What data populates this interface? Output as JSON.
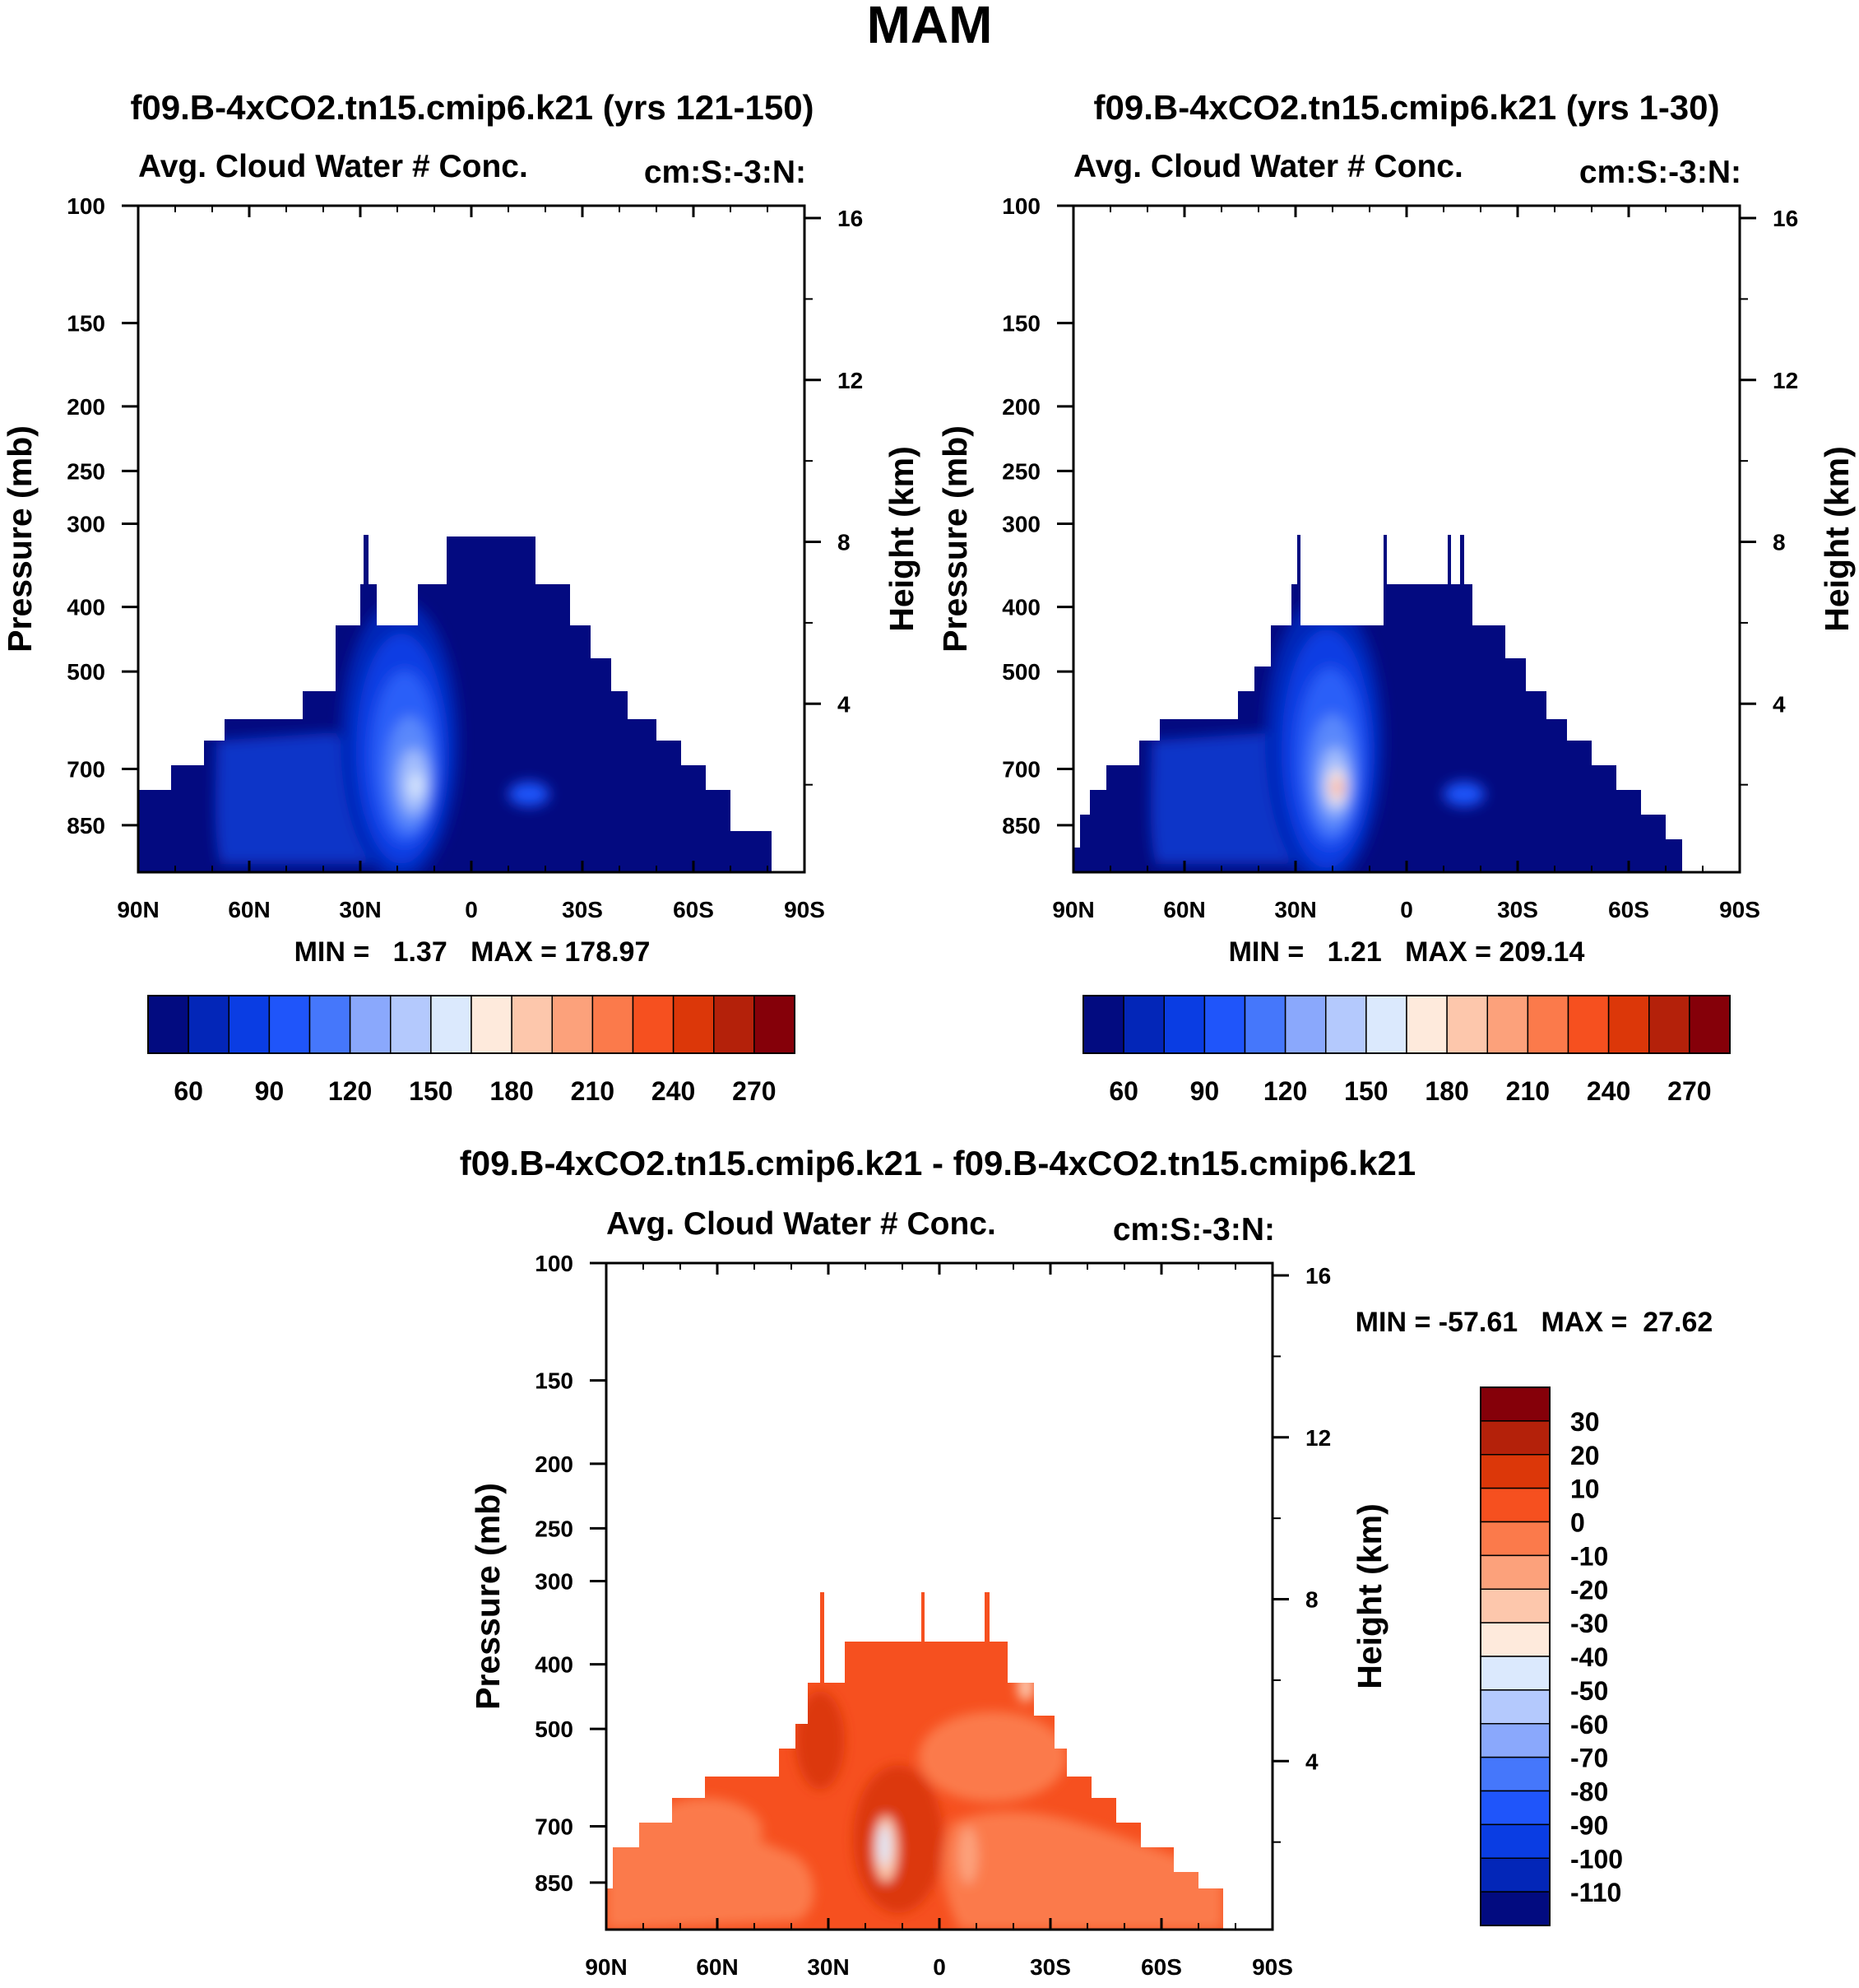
{
  "figure_title": "MAM",
  "panels": [
    {
      "id": "panel1",
      "case_title": "f09.B-4xCO2.tn15.cmip6.k21 (yrs 121-150)",
      "variable": "Avg. Cloud Water # Conc.",
      "units": "cm:S:-3:N:",
      "stats": "MIN =   1.37   MAX = 178.97",
      "y_label_left": "Pressure (mb)",
      "y_label_right": "Height (km)",
      "colorbar": {
        "colors": [
          "#020b80",
          "#0326b8",
          "#0a3de3",
          "#1f55fa",
          "#4577fb",
          "#8aa8fc",
          "#b4c9fd",
          "#dbe9fd",
          "#feeadc",
          "#fdc7ac",
          "#fca17b",
          "#fb7a4b",
          "#f6501f",
          "#dc3709",
          "#b4210a",
          "#850009"
        ],
        "labels": [
          "60",
          "90",
          "120",
          "150",
          "180",
          "210",
          "240",
          "270"
        ]
      }
    },
    {
      "id": "panel2",
      "case_title": "f09.B-4xCO2.tn15.cmip6.k21 (yrs 1-30)",
      "variable": "Avg. Cloud Water # Conc.",
      "units": "cm:S:-3:N:",
      "stats": "MIN =   1.21   MAX = 209.14",
      "y_label_left": "Pressure (mb)",
      "y_label_right": "Height (km)",
      "colorbar": {
        "colors": [
          "#020b80",
          "#0326b8",
          "#0a3de3",
          "#1f55fa",
          "#4577fb",
          "#8aa8fc",
          "#b4c9fd",
          "#dbe9fd",
          "#feeadc",
          "#fdc7ac",
          "#fca17b",
          "#fb7a4b",
          "#f6501f",
          "#dc3709",
          "#b4210a",
          "#850009"
        ],
        "labels": [
          "60",
          "90",
          "120",
          "150",
          "180",
          "210",
          "240",
          "270"
        ]
      }
    },
    {
      "id": "panel3",
      "case_title": "f09.B-4xCO2.tn15.cmip6.k21 - f09.B-4xCO2.tn15.cmip6.k21",
      "variable": "Avg. Cloud Water # Conc.",
      "units": "cm:S:-3:N:",
      "stats": "MIN = -57.61   MAX =  27.62",
      "y_label_left": "Pressure (mb)",
      "y_label_right": "Height (km)",
      "colorbar": {
        "colors": [
          "#020b80",
          "#0326b8",
          "#0a3de3",
          "#1f55fa",
          "#4577fb",
          "#8aa8fc",
          "#b4c9fd",
          "#dbe9fd",
          "#feeadc",
          "#fdc7ac",
          "#fca17b",
          "#fb7a4b",
          "#f6501f",
          "#dc3709",
          "#b4210a",
          "#850009"
        ],
        "labels": [
          "30",
          "20",
          "10",
          "0",
          "-10",
          "-20",
          "-30",
          "-40",
          "-50",
          "-60",
          "-70",
          "-80",
          "-90",
          "-100",
          "-110"
        ]
      }
    }
  ],
  "chart_data": [
    {
      "type": "heatmap",
      "title": "f09.B-4xCO2.tn15.cmip6.k21 (yrs 121-150)",
      "subtitle": "Avg. Cloud Water # Conc.",
      "units": "cm:S:-3:N:",
      "xlabel": "",
      "ylabel": "Pressure (mb)",
      "ylabel_right": "Height (km)",
      "x_ticks": [
        "90N",
        "60N",
        "30N",
        "0",
        "30S",
        "60S",
        "90S"
      ],
      "y_ticks_left": [
        "100",
        "150",
        "200",
        "250",
        "300",
        "400",
        "500",
        "700",
        "850"
      ],
      "y_ticks_right": [
        "16",
        "12",
        "8",
        "4"
      ],
      "xlim": [
        90,
        -90
      ],
      "ylim": [
        1000,
        100
      ],
      "min": 1.37,
      "max": 178.97,
      "contour_levels": [
        60,
        75,
        90,
        105,
        120,
        135,
        150,
        165,
        180,
        195,
        210,
        225,
        240,
        255,
        270
      ],
      "colorbar_labels": [
        "60",
        "90",
        "120",
        "150",
        "180",
        "210",
        "240",
        "270"
      ]
    },
    {
      "type": "heatmap",
      "title": "f09.B-4xCO2.tn15.cmip6.k21 (yrs 1-30)",
      "subtitle": "Avg. Cloud Water # Conc.",
      "units": "cm:S:-3:N:",
      "xlabel": "",
      "ylabel": "Pressure (mb)",
      "ylabel_right": "Height (km)",
      "x_ticks": [
        "90N",
        "60N",
        "30N",
        "0",
        "30S",
        "60S",
        "90S"
      ],
      "y_ticks_left": [
        "100",
        "150",
        "200",
        "250",
        "300",
        "400",
        "500",
        "700",
        "850"
      ],
      "y_ticks_right": [
        "16",
        "12",
        "8",
        "4"
      ],
      "xlim": [
        90,
        -90
      ],
      "ylim": [
        1000,
        100
      ],
      "min": 1.21,
      "max": 209.14,
      "contour_levels": [
        60,
        75,
        90,
        105,
        120,
        135,
        150,
        165,
        180,
        195,
        210,
        225,
        240,
        255,
        270
      ],
      "colorbar_labels": [
        "60",
        "90",
        "120",
        "150",
        "180",
        "210",
        "240",
        "270"
      ]
    },
    {
      "type": "heatmap",
      "title": "f09.B-4xCO2.tn15.cmip6.k21 - f09.B-4xCO2.tn15.cmip6.k21",
      "subtitle": "Avg. Cloud Water # Conc.",
      "units": "cm:S:-3:N:",
      "xlabel": "",
      "ylabel": "Pressure (mb)",
      "ylabel_right": "Height (km)",
      "x_ticks": [
        "90N",
        "60N",
        "30N",
        "0",
        "30S",
        "60S",
        "90S"
      ],
      "y_ticks_left": [
        "100",
        "150",
        "200",
        "250",
        "300",
        "400",
        "500",
        "700",
        "850"
      ],
      "y_ticks_right": [
        "16",
        "12",
        "8",
        "4"
      ],
      "xlim": [
        90,
        -90
      ],
      "ylim": [
        1000,
        100
      ],
      "min": -57.61,
      "max": 27.62,
      "contour_levels": [
        30,
        20,
        10,
        0,
        -10,
        -20,
        -30,
        -40,
        -50,
        -60,
        -70,
        -80,
        -90,
        -100,
        -110
      ],
      "colorbar_labels": [
        "30",
        "20",
        "10",
        "0",
        "-10",
        "-20",
        "-30",
        "-40",
        "-50",
        "-60",
        "-70",
        "-80",
        "-90",
        "-100",
        "-110"
      ]
    }
  ]
}
